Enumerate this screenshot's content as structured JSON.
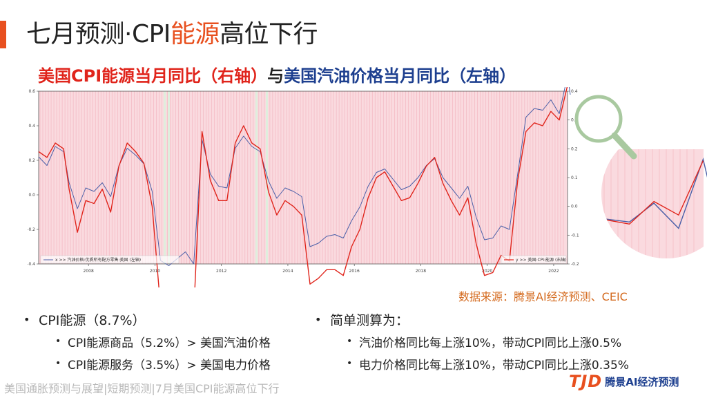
{
  "title": {
    "part1": "七月预测·CPI",
    "highlight": "能源",
    "part2": "高位下行"
  },
  "subtitle": {
    "part_red": "美国CPI能源当月同比（右轴）",
    "part_mid": "与",
    "part_blue": "美国汽油价格当月同比（左轴）"
  },
  "source": "数据来源：腾景AI经济预测、CEIC",
  "left_bullets": {
    "main": "CPI能源（8.7%）",
    "subs": [
      "CPI能源商品（5.2%）> 美国汽油价格",
      "CPI能源服务（3.5%）> 美国电力价格"
    ]
  },
  "right_bullets": {
    "main": "简单测算为：",
    "subs": [
      "汽油价格同比每上涨10%，带动CPI同比上涨0.5%",
      "电力价格同比每上涨10%，带动CPI同比上涨0.35%"
    ]
  },
  "footer": "美国通胀预测与展望|短期预测|7月美国CPI能源高位下行",
  "logo": {
    "mark": "TJD",
    "text": "腾景AI经济预测"
  },
  "colors": {
    "accent": "#e8501f",
    "gasoline": "#4a5fa8",
    "cpi_energy": "#e0241b",
    "shade": "#fadadf",
    "lens": "#a9c9a0"
  },
  "chart_data": {
    "type": "line",
    "x_range": [
      "2006-07",
      "2022-06"
    ],
    "x_ticks": [
      "2008",
      "2010",
      "2012",
      "2014",
      "2016",
      "2018",
      "2020",
      "2022"
    ],
    "left_axis": {
      "ticks": [
        "0.6",
        "0.4",
        "0.2",
        "0.0",
        "-0.2",
        "-0.4"
      ],
      "values": [
        0.6,
        0.4,
        0.2,
        0.0,
        -0.2,
        -0.4
      ]
    },
    "right_axis": {
      "ticks": [
        "0.4",
        "0.3",
        "0.2",
        "0.1",
        "0.0",
        "-0.1",
        "-0.2"
      ],
      "values": [
        0.4,
        0.3,
        0.2,
        0.1,
        0.0,
        -0.1,
        -0.2
      ]
    },
    "legend_left": "x >> 汽油价格:优质所有配方零售:美国 (左轴)",
    "legend_right": "y >> 美国:CPI:能源 (右轴)",
    "grid": false,
    "series": [
      {
        "name": "x >> 汽油价格:优质所有配方零售:美国 (左轴)",
        "axis": "left",
        "points": [
          [
            "2006-07",
            0.22
          ],
          [
            "2006-10",
            0.17
          ],
          [
            "2007-01",
            0.28
          ],
          [
            "2007-04",
            0.25
          ],
          [
            "2007-06",
            0.07
          ],
          [
            "2007-09",
            -0.08
          ],
          [
            "2007-12",
            0.04
          ],
          [
            "2008-03",
            0.02
          ],
          [
            "2008-06",
            0.07
          ],
          [
            "2008-09",
            -0.01
          ],
          [
            "2008-12",
            0.17
          ],
          [
            "2009-03",
            0.27
          ],
          [
            "2009-06",
            0.23
          ],
          [
            "2009-09",
            0.18
          ],
          [
            "2009-12",
            0.02
          ],
          [
            "2010-03",
            -0.38
          ],
          [
            "2010-06",
            -0.41
          ],
          [
            "2010-09",
            -0.37
          ],
          [
            "2010-12",
            -0.33
          ],
          [
            "2011-03",
            -0.4
          ],
          [
            "2011-06",
            0.32
          ],
          [
            "2011-09",
            0.12
          ],
          [
            "2011-12",
            0.05
          ],
          [
            "2012-03",
            0.04
          ],
          [
            "2012-06",
            0.27
          ],
          [
            "2012-09",
            0.34
          ],
          [
            "2012-12",
            0.28
          ],
          [
            "2013-03",
            0.25
          ],
          [
            "2013-06",
            0.08
          ],
          [
            "2013-09",
            -0.02
          ],
          [
            "2013-12",
            0.04
          ],
          [
            "2014-03",
            0.02
          ],
          [
            "2014-06",
            -0.01
          ],
          [
            "2014-09",
            -0.3
          ],
          [
            "2014-12",
            -0.28
          ],
          [
            "2015-03",
            -0.24
          ],
          [
            "2015-06",
            -0.23
          ],
          [
            "2015-09",
            -0.25
          ],
          [
            "2015-12",
            -0.15
          ],
          [
            "2016-03",
            -0.07
          ],
          [
            "2016-06",
            0.05
          ],
          [
            "2016-09",
            0.13
          ],
          [
            "2016-12",
            0.15
          ],
          [
            "2017-03",
            0.09
          ],
          [
            "2017-06",
            0.03
          ],
          [
            "2017-09",
            0.05
          ],
          [
            "2017-12",
            0.1
          ],
          [
            "2018-03",
            0.17
          ],
          [
            "2018-06",
            0.21
          ],
          [
            "2018-09",
            0.1
          ],
          [
            "2018-12",
            0.04
          ],
          [
            "2019-03",
            -0.02
          ],
          [
            "2019-06",
            0.05
          ],
          [
            "2019-09",
            -0.13
          ],
          [
            "2019-12",
            -0.26
          ],
          [
            "2020-03",
            -0.25
          ],
          [
            "2020-06",
            -0.18
          ],
          [
            "2020-09",
            -0.2
          ],
          [
            "2020-12",
            0.12
          ],
          [
            "2021-03",
            0.45
          ],
          [
            "2021-06",
            0.5
          ],
          [
            "2021-09",
            0.49
          ],
          [
            "2021-12",
            0.55
          ],
          [
            "2022-03",
            0.47
          ],
          [
            "2022-06",
            0.69
          ],
          [
            "2022-07",
            0.58
          ]
        ]
      },
      {
        "name": "y >> 美国:CPI:能源 (右轴)",
        "axis": "right",
        "points": [
          [
            "2006-07",
            0.19
          ],
          [
            "2006-10",
            0.17
          ],
          [
            "2007-01",
            0.22
          ],
          [
            "2007-04",
            0.2
          ],
          [
            "2007-06",
            0.06
          ],
          [
            "2007-09",
            -0.09
          ],
          [
            "2007-12",
            0.02
          ],
          [
            "2008-03",
            0.01
          ],
          [
            "2008-06",
            0.06
          ],
          [
            "2008-09",
            -0.02
          ],
          [
            "2008-12",
            0.14
          ],
          [
            "2009-03",
            0.22
          ],
          [
            "2009-06",
            0.19
          ],
          [
            "2009-09",
            0.15
          ],
          [
            "2009-12",
            0.0
          ],
          [
            "2010-03",
            -0.35
          ],
          [
            "2010-06",
            -0.38
          ],
          [
            "2010-09",
            -0.34
          ],
          [
            "2010-12",
            -0.31
          ],
          [
            "2011-03",
            -0.37
          ],
          [
            "2011-06",
            0.26
          ],
          [
            "2011-09",
            0.09
          ],
          [
            "2011-12",
            0.02
          ],
          [
            "2012-03",
            0.02
          ],
          [
            "2012-06",
            0.22
          ],
          [
            "2012-09",
            0.28
          ],
          [
            "2012-12",
            0.22
          ],
          [
            "2013-03",
            0.2
          ],
          [
            "2013-06",
            0.05
          ],
          [
            "2013-09",
            -0.03
          ],
          [
            "2013-12",
            0.02
          ],
          [
            "2014-03",
            0.0
          ],
          [
            "2014-06",
            -0.03
          ],
          [
            "2014-09",
            -0.27
          ],
          [
            "2014-12",
            -0.25
          ],
          [
            "2015-03",
            -0.22
          ],
          [
            "2015-06",
            -0.22
          ],
          [
            "2015-09",
            -0.24
          ],
          [
            "2015-12",
            -0.14
          ],
          [
            "2016-03",
            -0.08
          ],
          [
            "2016-06",
            0.03
          ],
          [
            "2016-09",
            0.1
          ],
          [
            "2016-12",
            0.12
          ],
          [
            "2017-03",
            0.07
          ],
          [
            "2017-06",
            0.02
          ],
          [
            "2017-09",
            0.03
          ],
          [
            "2017-12",
            0.08
          ],
          [
            "2018-03",
            0.14
          ],
          [
            "2018-06",
            0.17
          ],
          [
            "2018-09",
            0.08
          ],
          [
            "2018-12",
            0.02
          ],
          [
            "2019-03",
            -0.03
          ],
          [
            "2019-06",
            0.03
          ],
          [
            "2019-09",
            -0.13
          ],
          [
            "2019-12",
            -0.24
          ],
          [
            "2020-03",
            -0.23
          ],
          [
            "2020-06",
            -0.17
          ],
          [
            "2020-09",
            -0.19
          ],
          [
            "2020-12",
            0.09
          ],
          [
            "2021-03",
            0.26
          ],
          [
            "2021-06",
            0.29
          ],
          [
            "2021-09",
            0.28
          ],
          [
            "2021-12",
            0.33
          ],
          [
            "2022-03",
            0.3
          ],
          [
            "2022-06",
            0.42
          ]
        ]
      }
    ]
  }
}
